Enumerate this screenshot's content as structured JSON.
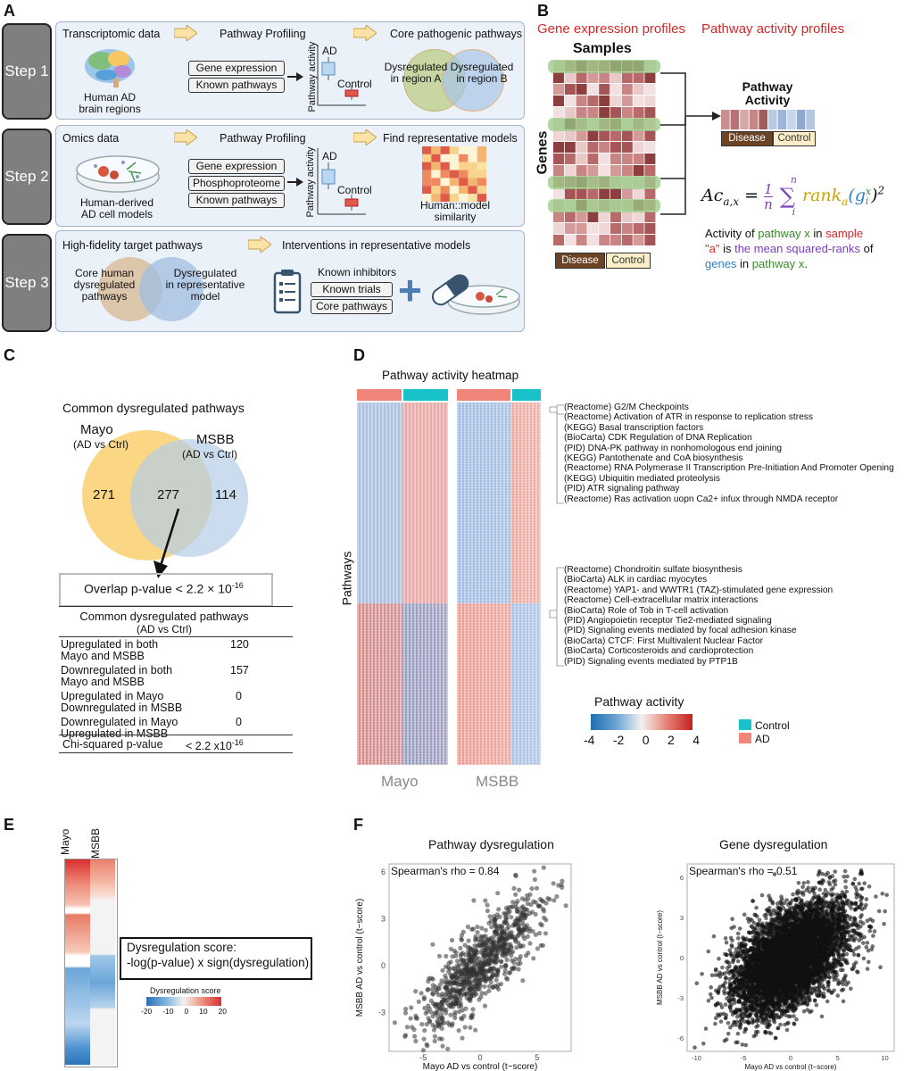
{
  "panels": {
    "a": "A",
    "b": "B",
    "c": "C",
    "d": "D",
    "e": "E",
    "f": "F"
  },
  "panelA": {
    "steps": [
      "Step 1",
      "Step 2",
      "Step 3"
    ],
    "step1": {
      "col1": "Transcriptomic data",
      "col2": "Pathway Profiling",
      "col3": "Core pathogenic pathways",
      "brain_label": "Human AD\nbrain regions",
      "boxes": [
        "Gene expression",
        "Known pathways"
      ],
      "ylabel": "Pathway activity",
      "ad": "AD",
      "control": "Control",
      "venn_a": "Dysregulated\nin region A",
      "venn_b": "Dysregulated\nin region B"
    },
    "step2": {
      "col1": "Omics data",
      "col2": "Pathway Profiling",
      "col3": "Find representative models",
      "cell_label": "Human-derived\nAD cell models",
      "boxes": [
        "Gene expression",
        "Phosphoproteome",
        "Known pathways"
      ],
      "ylabel": "Pathway activity",
      "ad": "AD",
      "control": "Control",
      "matrix_label": "Human::model\nsimilarity"
    },
    "step3": {
      "col1": "High-fidelity target pathways",
      "col2": "Interventions in representative models",
      "venn_a": "Core human\ndysregulated\npathways",
      "venn_b": "Dysregulated\nin representative\nmodel",
      "inhibitors": "Known inhibitors",
      "boxes": [
        "Known trials",
        "Core pathways"
      ],
      "plus": "+"
    }
  },
  "panelB": {
    "gene_expr_title": "Gene expression profiles",
    "pathway_title": "Pathway activity profiles",
    "samples": "Samples",
    "genes": "Genes",
    "pathway_activity": "Pathway\nActivity",
    "disease": "Disease",
    "control": "Control",
    "formula_lhs": "Ac",
    "formula_sub": "a,x",
    "formula_eq": " = ",
    "formula_frac_num": "1",
    "formula_frac_den": "n",
    "formula_sum": "∑",
    "formula_sum_top": "n",
    "formula_sum_bottom": "i",
    "formula_rank": "rank",
    "formula_rank_sub": "a",
    "formula_g": "(g",
    "formula_g_sup": "x",
    "formula_g_sub": "i",
    "formula_close": ")",
    "formula_pow": "2",
    "desc1a": "Activity of ",
    "desc1b": "pathway x",
    "desc1c": " in ",
    "desc1d": "sample",
    "desc2a": "\"a\"",
    "desc2b": " is ",
    "desc2c": "the mean squared-ranks",
    "desc2d": " of",
    "desc3a": "genes",
    "desc3b": " in ",
    "desc3c": "pathway x",
    "desc3d": ".",
    "colors": {
      "red": "#d62728",
      "green": "#3a8a2a",
      "purple": "#7b3fbf",
      "gold": "#c9a400",
      "blue": "#2f7fc1",
      "disease_bg": "#6b4426",
      "control_bg": "#fbeec8"
    }
  },
  "panelC": {
    "title": "Common dysregulated pathways",
    "mayo": "Mayo",
    "mayo_sub": "(AD vs Ctrl)",
    "msbb": "MSBB",
    "msbb_sub": "(AD vs Ctrl)",
    "n_left": "271",
    "n_mid": "277",
    "n_right": "114",
    "overlap_text": "Overlap p-value < 2.2 × 10",
    "overlap_exp": "-16",
    "table_title": "Common dysregulated pathways",
    "table_sub": "(AD vs Ctrl)",
    "rows": [
      {
        "label": "Upregulated in both\nMayo and MSBB",
        "value": "120"
      },
      {
        "label": "Downregulated in both\nMayo and MSBB",
        "value": "157"
      },
      {
        "label": "Upregulated in Mayo\nDownregulated in MSBB",
        "value": "0"
      },
      {
        "label": "Downregulated in Mayo\nUpregulated in MSBB",
        "value": "0"
      }
    ],
    "chi_label": "Chi-squared p-value",
    "chi_value": "< 2.2 x10",
    "chi_exp": "-16"
  },
  "panelD": {
    "title": "Pathway activity heatmap",
    "ylabel": "Pathways",
    "mayo": "Mayo",
    "msbb": "MSBB",
    "top_pathways": [
      "(Reactome) G2/M Checkpoints",
      "(Reactome) Activation of ATR in response to replication stress",
      "(KEGG) Basal transcription factors",
      "(BioCarta) CDK Regulation of DNA Replication",
      "(PID) DNA-PK pathway in nonhomologous end joining",
      "(KEGG) Pantothenate and CoA biosynthesis",
      "(Reactome) RNA Polymerase II Transcription Pre-Initiation And Promoter Opening",
      "(KEGG) Ubiquitin mediated proteolysis",
      "(PID) ATR signaling pathway",
      "(Reactome) Ras activation uopn Ca2+ infux through NMDA receptor"
    ],
    "bottom_pathways": [
      "(Reactome) Chondroitin sulfate biosynthesis",
      "(BioCarta) ALK in cardiac myocytes",
      "(Reactome) YAP1- and WWTR1 (TAZ)-stimulated gene expression",
      "(Reactome) Cell-extracellular matrix interactions",
      "(BioCarta) Role of Tob in T-cell activation",
      "(PID) Angiopoietin receptor Tie2-mediated signaling",
      "(PID) Signaling events mediated by focal adhesion kinase",
      "(BioCarta) CTCF: First Multivalent Nuclear Factor",
      "(BioCarta) Corticosteroids and cardioprotection",
      "(PID) Signaling events mediated by PTP1B"
    ],
    "legend_title": "Pathway activity",
    "legend_ticks": [
      "-4",
      "-2",
      "0",
      "2",
      "4"
    ],
    "group_control": "Control",
    "group_ad": "AD",
    "colors": {
      "control": "#19c2c8",
      "ad": "#f2857a",
      "low": "#2b6fb6",
      "high": "#d7302f"
    }
  },
  "panelE": {
    "col_mayo": "Mayo",
    "col_msbb": "MSBB",
    "score_title": "Dysregulation score:",
    "score_formula": "-log(p-value) x sign(dysregulation)",
    "legend_title": "Dysregulation score",
    "legend_ticks": [
      "-20",
      "-10",
      "0",
      "10",
      "20"
    ]
  },
  "panelF": {
    "chart_data": [
      {
        "type": "scatter",
        "title": "Pathway dysregulation",
        "annotation": "Spearman's rho = 0.84",
        "xlabel": "Mayo AD vs control (t−score)",
        "ylabel": "MSBB AD vs control (t−score)",
        "xlim": [
          -8,
          8
        ],
        "ylim": [
          -5.5,
          6.5
        ],
        "x_ticks": [
          "-5",
          "0",
          "5"
        ],
        "y_ticks": [
          "-3",
          "0",
          "3",
          "6"
        ],
        "n_points": 900,
        "rho": 0.84,
        "point_color": "#333333"
      },
      {
        "type": "scatter",
        "title": "Gene dysregulation",
        "annotation": "Spearman's rho = 0.51",
        "xlabel": "Mayo AD vs control (t−score)",
        "ylabel": "MSBB AD vs control (t−score)",
        "xlim": [
          -11,
          11
        ],
        "ylim": [
          -7,
          7
        ],
        "x_ticks": [
          "-10",
          "-5",
          "0",
          "5",
          "10"
        ],
        "y_ticks": [
          "-6",
          "-3",
          "0",
          "3",
          "6"
        ],
        "n_points": 6000,
        "rho": 0.51,
        "point_color": "#111111"
      }
    ]
  }
}
